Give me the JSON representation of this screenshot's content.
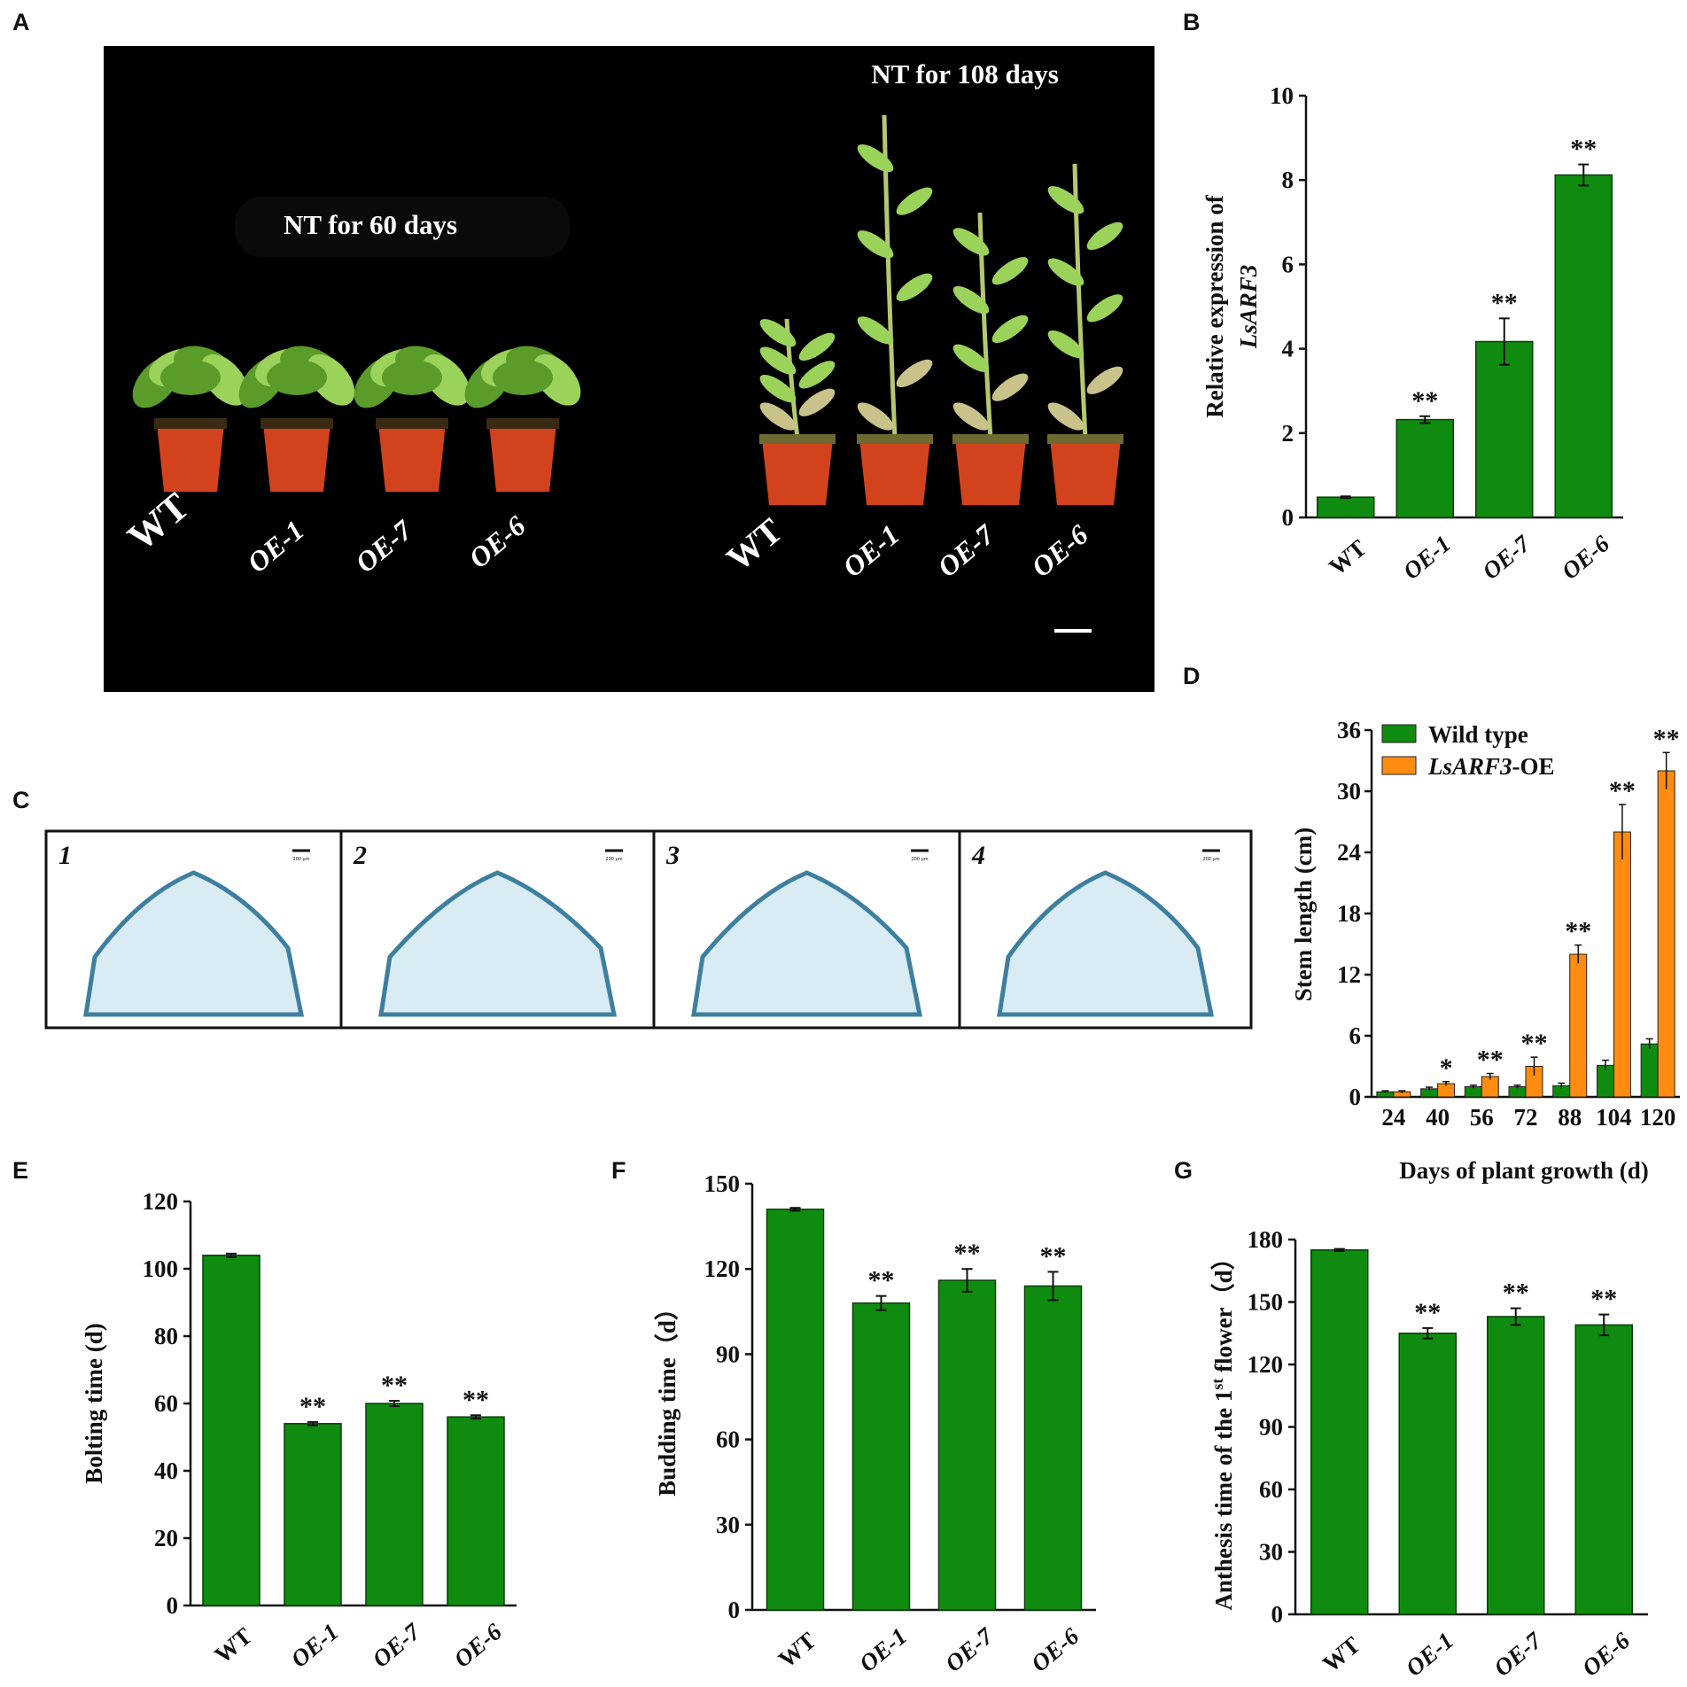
{
  "colors": {
    "green": "#0f8c0f",
    "orange": "#ff8c10",
    "photo_bg": "#000000",
    "leaf_light": "#9ad25a",
    "leaf_dark": "#5a9b2a",
    "pot": "#d2421c",
    "stain": "#3e7fa0",
    "tissue": "#d9ecf3"
  },
  "panel_a": {
    "label": "A",
    "title_left": "NT for 60 days",
    "title_right": "NT for 108 days",
    "labels_left": [
      "WT",
      "OE-1",
      "OE-7",
      "OE-6"
    ],
    "labels_right": [
      "WT",
      "OE-1",
      "OE-7",
      "OE-6"
    ]
  },
  "panel_c": {
    "label": "C",
    "numbers": [
      "1",
      "2",
      "3",
      "4"
    ],
    "scale_text": "200 μm"
  },
  "chart_data": [
    {
      "panel": "B",
      "type": "bar",
      "categories": [
        "WT",
        "OE-1",
        "OE-7",
        "OE-6"
      ],
      "values": [
        0.48,
        2.32,
        4.17,
        8.12
      ],
      "errors": [
        0.02,
        0.08,
        0.55,
        0.25
      ],
      "significance": [
        "",
        "**",
        "**",
        "**"
      ],
      "ylabel_line1": "Relative expression of",
      "ylabel_line2": "LsARF3",
      "ylim": [
        0,
        10
      ],
      "yticks": [
        0,
        2,
        4,
        6,
        8,
        10
      ],
      "color": "#0f8c0f"
    },
    {
      "panel": "D",
      "type": "bar",
      "categories": [
        "24",
        "40",
        "56",
        "72",
        "88",
        "104",
        "120"
      ],
      "series": [
        {
          "name": "Wild type",
          "values": [
            0.5,
            0.8,
            1.0,
            1.0,
            1.1,
            3.1,
            5.2
          ],
          "errors": [
            0.1,
            0.15,
            0.15,
            0.15,
            0.25,
            0.5,
            0.5
          ],
          "color": "#0f8c0f"
        },
        {
          "name": "LsARF3-OE",
          "values": [
            0.5,
            1.3,
            2.0,
            3.0,
            14.0,
            26.0,
            32.0
          ],
          "errors": [
            0.1,
            0.2,
            0.3,
            0.9,
            0.9,
            2.7,
            1.8
          ],
          "color": "#ff8c10"
        }
      ],
      "significance": [
        "",
        "*",
        "**",
        "**",
        "**",
        "**",
        "**"
      ],
      "legend": {
        "wt": "Wild type",
        "oe_italic": "LsARF3",
        "oe_suffix": "-OE"
      },
      "xlabel": "Days of plant growth (d)",
      "ylabel": "Stem length (cm)",
      "ylim": [
        0,
        36
      ],
      "yticks": [
        0,
        6,
        12,
        18,
        24,
        30,
        36
      ]
    },
    {
      "panel": "E",
      "type": "bar",
      "categories": [
        "WT",
        "OE-1",
        "OE-7",
        "OE-6"
      ],
      "values": [
        104,
        54,
        60,
        56
      ],
      "errors": [
        0.5,
        0.5,
        0.8,
        0.5
      ],
      "significance": [
        "",
        "**",
        "**",
        "**"
      ],
      "ylabel": "Bolting time (d)",
      "ylim": [
        0,
        120
      ],
      "yticks": [
        0,
        20,
        40,
        60,
        80,
        100,
        120
      ],
      "color": "#0f8c0f"
    },
    {
      "panel": "F",
      "type": "bar",
      "categories": [
        "WT",
        "OE-1",
        "OE-7",
        "OE-6"
      ],
      "values": [
        141,
        108,
        116,
        114
      ],
      "errors": [
        0.5,
        2.5,
        4,
        5
      ],
      "significance": [
        "",
        "**",
        "**",
        "**"
      ],
      "ylabel": "Budding time（d）",
      "ylim": [
        0,
        150
      ],
      "yticks": [
        0,
        30,
        60,
        90,
        120,
        150
      ],
      "color": "#0f8c0f"
    },
    {
      "panel": "G",
      "type": "bar",
      "categories": [
        "WT",
        "OE-1",
        "OE-7",
        "OE-6"
      ],
      "values": [
        175,
        135,
        143,
        139
      ],
      "errors": [
        0.5,
        2.5,
        4,
        5
      ],
      "significance": [
        "",
        "**",
        "**",
        "**"
      ],
      "ylabel_main": "Anthesis time of the 1",
      "ylabel_sup": "st",
      "ylabel_tail": " flower（d）",
      "ylim": [
        0,
        180
      ],
      "yticks": [
        0,
        30,
        60,
        90,
        120,
        150,
        180
      ],
      "color": "#0f8c0f"
    }
  ]
}
